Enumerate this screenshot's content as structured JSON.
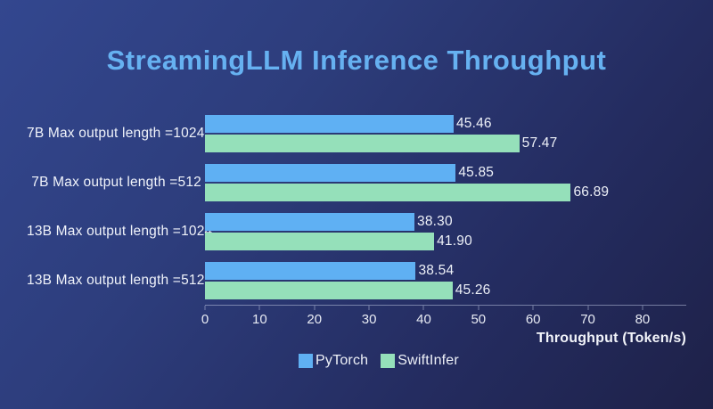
{
  "chart_data": {
    "type": "bar",
    "orientation": "horizontal",
    "title": "StreamingLLM Inference Throughput",
    "categories": [
      "7B Max output length =1024",
      "7B Max output length =512",
      "13B Max output length =1024",
      "13B Max output length =512"
    ],
    "series": [
      {
        "name": "PyTorch",
        "color": "#5fb0f3",
        "values": [
          45.46,
          45.85,
          38.3,
          38.54
        ],
        "labels": [
          "45.46",
          "45.85",
          "38.30",
          "38.54"
        ]
      },
      {
        "name": "SwiftInfer",
        "color": "#95e0ba",
        "values": [
          57.47,
          66.89,
          41.9,
          45.26
        ],
        "labels": [
          "57.47",
          "66.89",
          "41.90",
          "45.26"
        ]
      }
    ],
    "xlabel": "Throughput (Token/s)",
    "xlim": [
      0,
      88
    ],
    "x_ticks": [
      0,
      10,
      20,
      30,
      40,
      50,
      60,
      70,
      80
    ],
    "legend_position": "bottom",
    "grid": "off",
    "colors": {
      "title": "#66b1f1",
      "text": "#f0f3fa",
      "axis": "#aab3cf",
      "background_top_left": "#33478f",
      "background_bottom_right": "#1e2148"
    }
  }
}
